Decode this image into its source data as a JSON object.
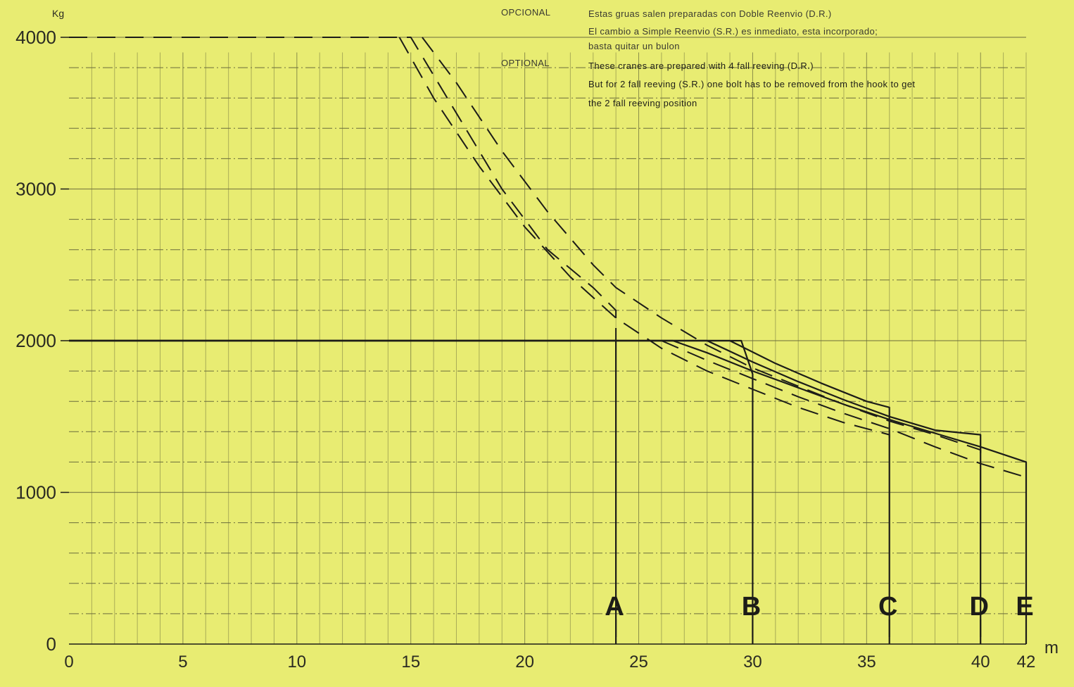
{
  "chart_data": {
    "type": "line",
    "y_unit": "Kg",
    "x_unit": "m",
    "xlim": [
      0,
      42
    ],
    "ylim": [
      0,
      4000
    ],
    "x_ticks": [
      {
        "v": 0,
        "label": "0"
      },
      {
        "v": 5,
        "label": "5"
      },
      {
        "v": 10,
        "label": "10"
      },
      {
        "v": 15,
        "label": "15"
      },
      {
        "v": 20,
        "label": "20"
      },
      {
        "v": 25,
        "label": "25"
      },
      {
        "v": 30,
        "label": "30"
      },
      {
        "v": 35,
        "label": "35"
      },
      {
        "v": 40,
        "label": "40"
      },
      {
        "v": 42,
        "label": "42"
      }
    ],
    "y_ticks": [
      {
        "v": 0,
        "label": "0"
      },
      {
        "v": 1000,
        "label": "1000"
      },
      {
        "v": 2000,
        "label": "2000"
      },
      {
        "v": 3000,
        "label": "3000"
      },
      {
        "v": 4000,
        "label": "4000"
      }
    ],
    "grid": true,
    "series": [
      {
        "name": "A",
        "style": "solid",
        "points": [
          [
            0,
            2000
          ],
          [
            24,
            2000
          ],
          [
            24,
            0
          ]
        ]
      },
      {
        "name": "B",
        "style": "solid",
        "points": [
          [
            0,
            2000
          ],
          [
            29.5,
            2000
          ],
          [
            30,
            1780
          ],
          [
            30,
            0
          ]
        ]
      },
      {
        "name": "C",
        "style": "solid",
        "points": [
          [
            0,
            2000
          ],
          [
            29,
            2000
          ],
          [
            31,
            1850
          ],
          [
            33,
            1720
          ],
          [
            35,
            1600
          ],
          [
            36,
            1560
          ],
          [
            36,
            0
          ]
        ]
      },
      {
        "name": "D",
        "style": "solid",
        "points": [
          [
            0,
            2000
          ],
          [
            28,
            2000
          ],
          [
            30,
            1860
          ],
          [
            32,
            1730
          ],
          [
            34,
            1610
          ],
          [
            36,
            1500
          ],
          [
            38,
            1410
          ],
          [
            40,
            1380
          ],
          [
            40,
            0
          ]
        ]
      },
      {
        "name": "E",
        "style": "solid",
        "points": [
          [
            0,
            2000
          ],
          [
            26.5,
            2000
          ],
          [
            28,
            1920
          ],
          [
            30,
            1800
          ],
          [
            32,
            1690
          ],
          [
            34,
            1580
          ],
          [
            36,
            1480
          ],
          [
            38,
            1390
          ],
          [
            40,
            1300
          ],
          [
            42,
            1200
          ],
          [
            42,
            0
          ]
        ]
      },
      {
        "name": "A (D.R.)",
        "style": "dashed",
        "points": [
          [
            0,
            4000
          ],
          [
            15,
            4000
          ],
          [
            17,
            3500
          ],
          [
            19,
            3000
          ],
          [
            21,
            2600
          ],
          [
            23,
            2350
          ],
          [
            24,
            2200
          ],
          [
            24,
            2000
          ]
        ]
      },
      {
        "name": "C (D.R.)",
        "style": "dashed",
        "points": [
          [
            14.5,
            4000
          ],
          [
            16,
            3600
          ],
          [
            18,
            3150
          ],
          [
            20,
            2750
          ],
          [
            22,
            2420
          ],
          [
            24,
            2150
          ],
          [
            26,
            1950
          ],
          [
            28,
            1800
          ],
          [
            30,
            1680
          ],
          [
            32,
            1560
          ],
          [
            34,
            1460
          ],
          [
            36,
            1380
          ],
          [
            36,
            1360
          ]
        ]
      },
      {
        "name": "D (D.R.)",
        "style": "dashed",
        "points": [
          [
            15.5,
            4000
          ],
          [
            17,
            3700
          ],
          [
            19,
            3250
          ],
          [
            21,
            2850
          ],
          [
            23,
            2500
          ],
          [
            24,
            2350
          ],
          [
            26,
            2150
          ],
          [
            28,
            1970
          ],
          [
            30,
            1820
          ],
          [
            32,
            1700
          ],
          [
            34,
            1580
          ],
          [
            36,
            1470
          ],
          [
            38,
            1380
          ],
          [
            40,
            1280
          ],
          [
            40,
            1260
          ]
        ]
      },
      {
        "name": "E (D.R.)",
        "style": "dashed",
        "points": [
          [
            26,
            2000
          ],
          [
            28,
            1870
          ],
          [
            30,
            1750
          ],
          [
            32,
            1630
          ],
          [
            34,
            1520
          ],
          [
            36,
            1420
          ],
          [
            38,
            1300
          ],
          [
            40,
            1190
          ],
          [
            42,
            1100
          ]
        ]
      }
    ],
    "curve_labels": [
      {
        "text": "A",
        "x": 24
      },
      {
        "text": "B",
        "x": 30
      },
      {
        "text": "C",
        "x": 36
      },
      {
        "text": "D",
        "x": 40
      },
      {
        "text": "E",
        "x": 42
      }
    ],
    "annotations": {
      "opcional_label": "OPCIONAL",
      "opcional_lines": [
        "Estas gruas salen preparadas con Doble Reenvio (D.R.)",
        "El cambio a Simple Reenvio (S.R.) es inmediato, esta incorporado;",
        "basta quitar un bulon"
      ],
      "optional_label": "OPTIONAL",
      "optional_lines": [
        "These cranes are prepared with 4 fall reeving (D.R.)",
        "But for 2 fall reeving (S.R.) one bolt has to be removed from the hook to get",
        "the 2 fall reeving position"
      ]
    }
  },
  "colors": {
    "background": "#e8ec72",
    "grid": "#6b6d3c",
    "line": "#1c1c18"
  }
}
